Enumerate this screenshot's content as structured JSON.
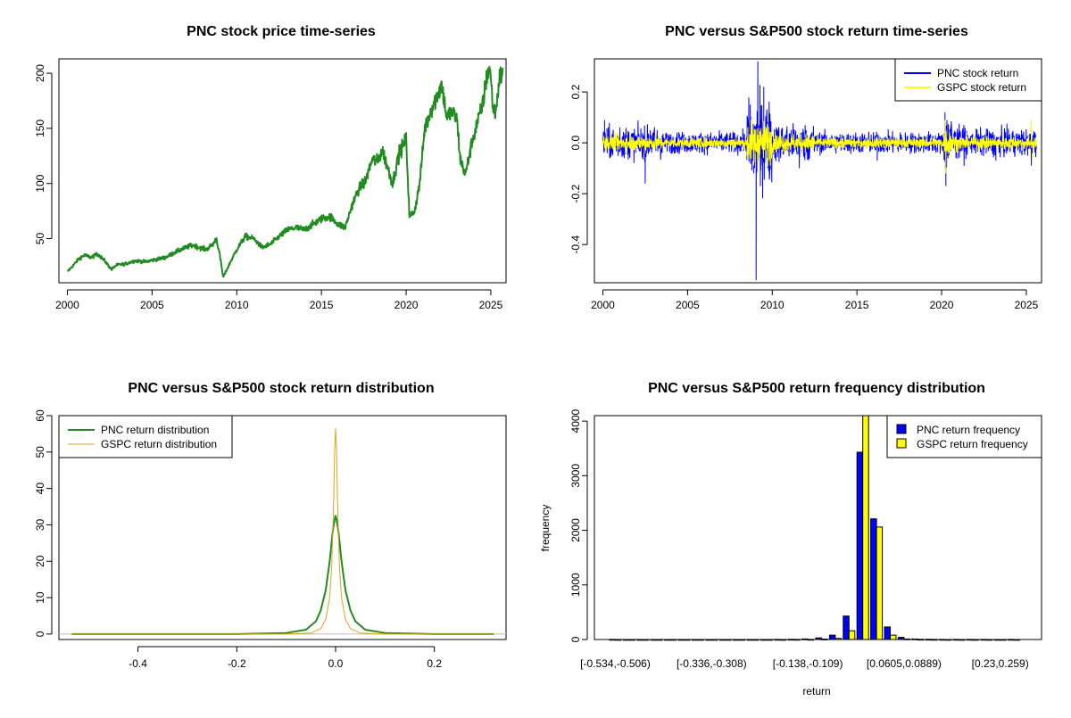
{
  "colors": {
    "pnc_price": "#228B22",
    "pnc_return": "#0000ff",
    "gspc_return": "#ffff00",
    "pnc_density": "#228B22",
    "gspc_density": "#DAA520",
    "pnc_bar": "#0000ff",
    "gspc_bar": "#ffff00"
  },
  "chart_data": [
    {
      "type": "line",
      "title": "PNC stock price time-series",
      "xlabel": "",
      "ylabel": "",
      "xlim": [
        1999.5,
        2025.9
      ],
      "ylim": [
        10,
        213
      ],
      "xticks": [
        "2000",
        "2005",
        "2010",
        "2015",
        "2020",
        "2025"
      ],
      "yticks": [
        "50",
        "100",
        "150",
        "200"
      ],
      "series": [
        {
          "x": [
            2000.0,
            2000.3,
            2000.7,
            2001.0,
            2001.4,
            2001.8,
            2002.2,
            2002.6,
            2002.9,
            2003.4,
            2004.0,
            2004.6,
            2005.2,
            2005.8,
            2006.4,
            2007.0,
            2007.4,
            2007.8,
            2008.2,
            2008.6,
            2008.8,
            2009.0,
            2009.2,
            2009.6,
            2010.0,
            2010.5,
            2011.0,
            2011.5,
            2012.0,
            2012.5,
            2013.0,
            2013.5,
            2014.0,
            2014.5,
            2015.0,
            2015.5,
            2016.0,
            2016.4,
            2016.8,
            2017.2,
            2017.6,
            2018.0,
            2018.3,
            2018.6,
            2018.9,
            2019.2,
            2019.6,
            2020.0,
            2020.2,
            2020.5,
            2020.8,
            2021.1,
            2021.5,
            2021.9,
            2022.1,
            2022.4,
            2022.7,
            2023.0,
            2023.2,
            2023.5,
            2023.9,
            2024.2,
            2024.5,
            2024.8,
            2024.95,
            2025.15,
            2025.3,
            2025.5,
            2025.7
          ],
          "y": [
            20,
            25,
            32,
            35,
            33,
            36,
            30,
            22,
            26,
            27,
            30,
            29,
            31,
            33,
            38,
            42,
            44,
            42,
            40,
            45,
            50,
            35,
            15,
            28,
            40,
            52,
            50,
            42,
            45,
            52,
            58,
            60,
            58,
            63,
            68,
            70,
            63,
            60,
            80,
            95,
            102,
            122,
            120,
            130,
            115,
            100,
            128,
            140,
            70,
            75,
            100,
            150,
            168,
            182,
            190,
            160,
            165,
            158,
            122,
            108,
            138,
            155,
            170,
            200,
            205,
            165,
            165,
            195,
            200
          ]
        }
      ]
    },
    {
      "type": "line",
      "title": "PNC versus S&P500 stock return time-series",
      "xlabel": "",
      "ylabel": "",
      "xlim": [
        1999.5,
        2025.9
      ],
      "ylim": [
        -0.55,
        0.33
      ],
      "xticks": [
        "2000",
        "2005",
        "2010",
        "2015",
        "2020",
        "2025"
      ],
      "yticks": [
        "-0.4",
        "-0.2",
        "0.0",
        "0.2"
      ],
      "legend": "top-right",
      "series": [
        {
          "name": "PNC stock return",
          "points": [
            [
              2000.1,
              0.09
            ],
            [
              2000.4,
              -0.06
            ],
            [
              2001.0,
              0.06
            ],
            [
              2002.5,
              -0.16
            ],
            [
              2002.8,
              0.05
            ],
            [
              2003.5,
              -0.04
            ],
            [
              2008.7,
              0.15
            ],
            [
              2008.9,
              -0.12
            ],
            [
              2009.05,
              -0.54
            ],
            [
              2009.15,
              0.32
            ],
            [
              2009.3,
              -0.17
            ],
            [
              2009.5,
              0.22
            ],
            [
              2009.8,
              0.12
            ],
            [
              2010.2,
              -0.06
            ],
            [
              2011.6,
              -0.1
            ],
            [
              2012.0,
              0.05
            ],
            [
              2016.2,
              -0.07
            ],
            [
              2020.2,
              0.12
            ],
            [
              2020.25,
              -0.17
            ],
            [
              2020.4,
              0.07
            ],
            [
              2021.0,
              0.04
            ],
            [
              2023.2,
              -0.07
            ],
            [
              2025.3,
              -0.09
            ],
            [
              2025.5,
              0.04
            ]
          ]
        },
        {
          "name": "GSPC stock return",
          "points": [
            [
              2000.2,
              0.04
            ],
            [
              2002.5,
              -0.04
            ],
            [
              2008.8,
              0.1
            ],
            [
              2008.9,
              -0.09
            ],
            [
              2009.2,
              0.06
            ],
            [
              2020.2,
              0.09
            ],
            [
              2020.25,
              -0.12
            ],
            [
              2025.3,
              0.09
            ],
            [
              2025.4,
              -0.06
            ]
          ]
        }
      ]
    },
    {
      "type": "line",
      "title": "PNC versus S&P500 stock return distribution",
      "xlabel": "",
      "ylabel": "",
      "xlim": [
        -0.56,
        0.345
      ],
      "ylim": [
        -1.5,
        60
      ],
      "xticks": [
        "-0.4",
        "-0.2",
        "0.0",
        "0.2"
      ],
      "yticks": [
        "0",
        "10",
        "20",
        "30",
        "40",
        "50",
        "60"
      ],
      "legend": "top-left",
      "series": [
        {
          "name": "PNC return distribution",
          "x": [
            -0.534,
            -0.2,
            -0.1,
            -0.06,
            -0.04,
            -0.03,
            -0.02,
            -0.012,
            -0.006,
            -0.002,
            0.0,
            0.002,
            0.006,
            0.012,
            0.02,
            0.03,
            0.04,
            0.06,
            0.1,
            0.2,
            0.32
          ],
          "y": [
            0,
            0,
            0.3,
            1.2,
            3.5,
            6.5,
            12,
            20,
            28,
            31.5,
            32.5,
            31.5,
            28,
            20,
            12,
            6.5,
            3.5,
            1.2,
            0.3,
            0,
            0
          ]
        },
        {
          "name": "GSPC return distribution",
          "x": [
            -0.534,
            -0.1,
            -0.05,
            -0.03,
            -0.02,
            -0.012,
            -0.008,
            -0.004,
            -0.002,
            0.0,
            0.002,
            0.004,
            0.008,
            0.012,
            0.02,
            0.03,
            0.05,
            0.1,
            0.32
          ],
          "y": [
            0,
            0,
            0.3,
            1.5,
            4,
            10,
            18,
            36,
            50,
            56.5,
            50,
            36,
            18,
            10,
            4,
            1.5,
            0.3,
            0,
            0
          ]
        }
      ]
    },
    {
      "type": "bar",
      "title": "PNC versus S&P500 return frequency distribution",
      "xlabel": "return",
      "ylabel": "frequency",
      "ylim": [
        0,
        4100
      ],
      "yticks": [
        "0",
        "1000",
        "2000",
        "3000",
        "4000"
      ],
      "legend": "top-right",
      "xtick_labels": [
        "[-0.534,-0.506)",
        "[-0.336,-0.308)",
        "[-0.138,-0.109)",
        "[0.0605,0.0889)",
        "[0.23,0.259)"
      ],
      "series": [
        {
          "name": "PNC return frequency",
          "values": [
            1,
            0,
            0,
            0,
            0,
            0,
            0,
            0,
            0,
            0,
            0,
            0,
            1,
            3,
            10,
            30,
            80,
            430,
            3430,
            2210,
            230,
            40,
            10,
            3,
            1,
            1,
            1,
            1,
            0,
            1
          ]
        },
        {
          "name": "GSPC return frequency",
          "values": [
            0,
            0,
            0,
            0,
            0,
            0,
            0,
            0,
            0,
            0,
            0,
            0,
            0,
            1,
            2,
            8,
            20,
            160,
            4200,
            2060,
            80,
            10,
            3,
            1,
            0,
            0,
            0,
            0,
            0,
            0
          ]
        }
      ]
    }
  ]
}
